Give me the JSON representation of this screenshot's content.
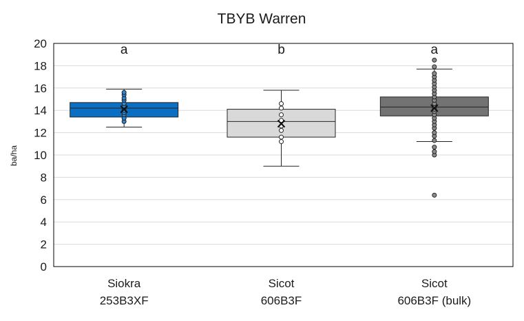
{
  "chart_data": {
    "type": "box",
    "title": "TBYB Warren",
    "xlabel": "",
    "ylabel": "ba/ha",
    "ylim": [
      0,
      20
    ],
    "ytick_step": 2,
    "grid": true,
    "categories": [
      {
        "line1": "Siokra",
        "line2": "253B3XF"
      },
      {
        "line1": "Sicot",
        "line2": "606B3F"
      },
      {
        "line1": "Sicot",
        "line2": "606B3F (bulk)"
      }
    ],
    "letters": [
      "a",
      "b",
      "a"
    ],
    "colors": [
      "#0a6fc2",
      "#d9d9d9",
      "#737373"
    ],
    "point_fill": [
      "#2e86d4",
      "#ffffff",
      "#8c8c8c"
    ],
    "boxes": [
      {
        "min": 12.5,
        "q1": 13.4,
        "median": 14.2,
        "q3": 14.7,
        "max": 15.9,
        "mean": 14.1,
        "points": [
          13.0,
          13.3,
          13.6,
          13.8,
          14.0,
          14.2,
          14.4,
          14.6,
          14.9,
          15.1,
          15.4,
          15.6
        ]
      },
      {
        "min": 9.0,
        "q1": 11.6,
        "median": 13.0,
        "q3": 14.1,
        "max": 15.8,
        "mean": 12.8,
        "points": [
          11.2,
          11.6,
          12.2,
          12.6,
          13.1,
          13.6,
          14.2,
          14.6
        ]
      },
      {
        "min": 11.2,
        "q1": 13.5,
        "median": 14.3,
        "q3": 15.2,
        "max": 17.7,
        "mean": 14.2,
        "points": [
          6.4,
          10.0,
          10.3,
          10.7,
          11.3,
          11.7,
          12.0,
          12.4,
          12.7,
          13.0,
          13.3,
          13.6,
          13.9,
          14.1,
          14.3,
          14.6,
          14.9,
          15.2,
          15.5,
          15.8,
          16.1,
          16.4,
          16.7,
          17.0,
          17.3,
          17.9,
          18.5
        ]
      }
    ]
  }
}
